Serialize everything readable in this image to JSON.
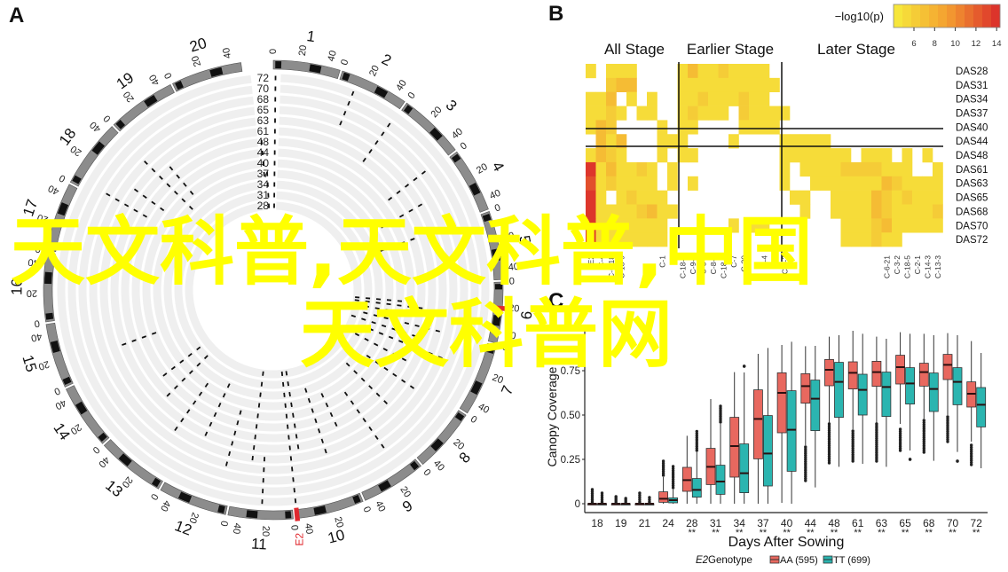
{
  "panels": {
    "a": "A",
    "b": "B",
    "c": "C"
  },
  "watermark": {
    "line1": "天文科普,天文科普,中国",
    "line2": "天文科普网"
  },
  "colors": {
    "track": "#efefef",
    "ring": "#8c8c8c",
    "band": "#111111",
    "marker": "#e0282e",
    "aa": "#e8685f",
    "tt": "#2bb5b0",
    "heat_low": "#f6ec3c",
    "heat_high": "#da2a2a"
  },
  "circos": {
    "chromosomes": [
      "1",
      "2",
      "3",
      "4",
      "5",
      "6",
      "7",
      "8",
      "9",
      "10",
      "11",
      "12",
      "13",
      "14",
      "15",
      "16",
      "17",
      "18",
      "19",
      "20"
    ],
    "tick_labels": [
      "0",
      "20",
      "40"
    ],
    "tracks": [
      "72",
      "70",
      "68",
      "65",
      "63",
      "61",
      "48",
      "44",
      "40",
      "37",
      "34",
      "31",
      "28"
    ],
    "marker_label": "E2"
  },
  "chart_data": [
    {
      "type": "heatmap",
      "legend_title": "−log10(p)",
      "colorbar_ticks": [
        "6",
        "8",
        "10",
        "12",
        "14"
      ],
      "color_range": [
        5,
        14.5
      ],
      "groups": [
        "All Stage",
        "Earlier Stage",
        "Later Stage"
      ],
      "group_sizes": [
        9,
        10,
        16
      ],
      "rows": [
        "DAS28",
        "DAS31",
        "DAS34",
        "DAS37",
        "DAS40",
        "DAS44",
        "DAS48",
        "DAS61",
        "DAS63",
        "DAS65",
        "DAS68",
        "DAS70",
        "DAS72"
      ],
      "columns": [
        "E2",
        "C-4",
        "C-6-18",
        "C-18-9",
        "",
        "",
        "",
        "C-1",
        "",
        "C-18-4",
        "C-9-6",
        "C-3-3",
        "C-8-1",
        "C-18-3",
        "C-7",
        "C-20",
        "",
        "C-4",
        "C-6",
        "C-9-2",
        "",
        "",
        "",
        "",
        "",
        "",
        "",
        "",
        "",
        "C-6-21",
        "C-3-2",
        "C-18-5",
        "C-2-1",
        "C-14-3",
        "C-13-3"
      ],
      "values": [
        [
          6,
          null,
          6,
          6,
          6,
          null,
          null,
          null,
          null,
          6,
          8,
          6,
          6,
          7,
          6,
          6,
          6,
          6,
          null,
          null,
          null,
          null,
          null,
          null,
          null,
          null,
          null,
          null,
          null,
          null,
          null,
          null,
          null,
          null,
          null
        ],
        [
          null,
          null,
          7,
          8,
          8,
          null,
          null,
          null,
          null,
          6,
          6,
          6,
          6,
          6,
          6,
          6,
          6,
          6,
          6,
          null,
          null,
          null,
          null,
          null,
          null,
          null,
          null,
          null,
          null,
          null,
          null,
          null,
          null,
          null,
          null
        ],
        [
          6,
          6,
          8,
          null,
          6,
          null,
          6,
          null,
          null,
          6,
          6,
          7,
          6,
          6,
          6,
          7,
          6,
          6,
          null,
          null,
          null,
          null,
          null,
          null,
          null,
          null,
          null,
          null,
          null,
          null,
          null,
          null,
          null,
          null,
          null
        ],
        [
          6,
          6,
          7,
          6,
          null,
          6,
          6,
          null,
          null,
          6,
          7,
          6,
          6,
          6,
          null,
          7,
          6,
          6,
          6,
          6,
          null,
          null,
          null,
          null,
          null,
          null,
          null,
          null,
          null,
          null,
          null,
          null,
          null,
          null,
          null
        ],
        [
          6,
          8,
          7,
          null,
          null,
          null,
          null,
          6,
          null,
          6,
          6,
          null,
          null,
          null,
          null,
          6,
          6,
          6,
          6,
          null,
          null,
          null,
          null,
          null,
          null,
          null,
          null,
          null,
          null,
          null,
          null,
          null,
          null,
          null,
          null
        ],
        [
          null,
          8,
          6,
          8,
          null,
          null,
          null,
          6,
          6,
          6,
          null,
          null,
          null,
          null,
          6,
          null,
          null,
          null,
          null,
          6,
          6,
          6,
          6,
          6,
          null,
          null,
          null,
          null,
          null,
          null,
          null,
          null,
          null,
          null,
          null
        ],
        [
          6,
          8,
          7,
          6,
          null,
          null,
          null,
          6,
          null,
          6,
          6,
          null,
          null,
          null,
          null,
          null,
          null,
          null,
          null,
          6,
          6,
          6,
          6,
          6,
          6,
          6,
          null,
          6,
          6,
          6,
          null,
          6,
          null,
          6,
          null
        ],
        [
          14,
          6,
          8,
          6,
          6,
          7,
          6,
          null,
          6,
          null,
          null,
          null,
          null,
          null,
          null,
          null,
          null,
          null,
          null,
          6,
          null,
          6,
          6,
          6,
          6,
          7,
          7,
          7,
          7,
          6,
          6,
          6,
          null,
          null,
          6
        ],
        [
          13,
          6,
          7,
          6,
          6,
          6,
          6,
          null,
          6,
          null,
          6,
          null,
          null,
          null,
          null,
          null,
          null,
          null,
          null,
          6,
          null,
          null,
          6,
          6,
          6,
          6,
          6,
          6,
          6,
          8,
          7,
          6,
          6,
          6,
          6
        ],
        [
          14,
          6,
          null,
          6,
          7,
          6,
          6,
          6,
          null,
          null,
          null,
          null,
          null,
          null,
          null,
          null,
          null,
          null,
          null,
          null,
          6,
          6,
          null,
          null,
          6,
          6,
          6,
          6,
          8,
          7,
          6,
          7,
          6,
          6,
          6
        ],
        [
          14,
          6,
          6,
          6,
          6,
          7,
          8,
          6,
          6,
          null,
          null,
          null,
          null,
          null,
          null,
          null,
          null,
          null,
          null,
          null,
          null,
          6,
          null,
          null,
          6,
          6,
          6,
          6,
          8,
          7,
          6,
          6,
          6,
          6,
          7
        ],
        [
          14,
          6,
          6,
          6,
          6,
          6,
          6,
          6,
          null,
          null,
          null,
          null,
          null,
          null,
          6,
          null,
          6,
          6,
          null,
          null,
          null,
          null,
          null,
          null,
          null,
          6,
          6,
          6,
          7,
          8,
          6,
          6,
          6,
          6,
          6
        ],
        [
          14,
          6,
          6,
          6,
          6,
          6,
          6,
          6,
          null,
          null,
          null,
          null,
          null,
          null,
          null,
          null,
          null,
          null,
          null,
          null,
          null,
          null,
          null,
          null,
          null,
          6,
          6,
          6,
          7,
          6,
          6,
          null,
          null,
          null,
          null
        ]
      ]
    },
    {
      "type": "box",
      "xlabel": "Days After Sowing",
      "ylabel": "Canopy Coverage",
      "ylim": [
        0,
        1
      ],
      "yticks": [
        "0",
        "0.25",
        "0.50",
        "0.75"
      ],
      "ytick_values": [
        0,
        0.25,
        0.5,
        0.75
      ],
      "categories": [
        "18",
        "19",
        "21",
        "24",
        "28",
        "31",
        "34",
        "37",
        "40",
        "44",
        "48",
        "61",
        "63",
        "65",
        "68",
        "70",
        "72"
      ],
      "significance": [
        "",
        "",
        "",
        "",
        "**",
        "**",
        "**",
        "**",
        "**",
        "**",
        "**",
        "**",
        "**",
        "**",
        "**",
        "**",
        "**"
      ],
      "legend": {
        "title_italic": "E2",
        "title": " Genotype"
      },
      "series": [
        {
          "name": "AA (595)",
          "stats": [
            {
              "whislo": 0,
              "q1": 0,
              "med": 0,
              "q3": 0,
              "whishi": 0.005,
              "outliers": [
                0.01,
                0.08
              ]
            },
            {
              "whislo": 0,
              "q1": 0,
              "med": 0,
              "q3": 0,
              "whishi": 0.005,
              "outliers": [
                0.01,
                0.04
              ]
            },
            {
              "whislo": 0,
              "q1": 0,
              "med": 0,
              "q3": 0,
              "whishi": 0.005,
              "outliers": [
                0.01,
                0.06
              ]
            },
            {
              "whislo": 0,
              "q1": 0.008,
              "med": 0.028,
              "q3": 0.067,
              "whishi": 0.15,
              "outliers": [
                0.16,
                0.24
              ]
            },
            {
              "whislo": 0,
              "q1": 0.07,
              "med": 0.133,
              "q3": 0.205,
              "whishi": 0.383,
              "outliers": null
            },
            {
              "whislo": 0,
              "q1": 0.108,
              "med": 0.208,
              "q3": 0.312,
              "whishi": 0.59,
              "outliers": null
            },
            {
              "whislo": 0,
              "q1": 0.15,
              "med": 0.325,
              "q3": 0.487,
              "whishi": 0.742,
              "outliers": null
            },
            {
              "whislo": 0,
              "q1": 0.253,
              "med": 0.478,
              "q3": 0.642,
              "whishi": 0.845,
              "outliers": null
            },
            {
              "whislo": 0.005,
              "q1": 0.4,
              "med": 0.625,
              "q3": 0.738,
              "whishi": 0.895,
              "outliers": null
            },
            {
              "whislo": 0.33,
              "q1": 0.567,
              "med": 0.663,
              "q3": 0.733,
              "whishi": 0.888,
              "outliers": [
                0.13,
                0.32
              ]
            },
            {
              "whislo": 0.45,
              "q1": 0.665,
              "med": 0.755,
              "q3": 0.813,
              "whishi": 0.942,
              "outliers": [
                0.23,
                0.45
              ]
            },
            {
              "whislo": 0.42,
              "q1": 0.647,
              "med": 0.738,
              "q3": 0.8,
              "whishi": 0.975,
              "outliers": [
                0.24,
                0.41
              ]
            },
            {
              "whislo": 0.45,
              "q1": 0.662,
              "med": 0.742,
              "q3": 0.803,
              "whishi": 0.942,
              "outliers": [
                0.24,
                0.45
              ]
            },
            {
              "whislo": 0.45,
              "q1": 0.675,
              "med": 0.77,
              "q3": 0.837,
              "whishi": 0.967,
              "outliers": [
                0.3,
                0.42
              ]
            },
            {
              "whislo": 0.48,
              "q1": 0.663,
              "med": 0.742,
              "q3": 0.792,
              "whishi": 0.958,
              "outliers": [
                0.29,
                0.47
              ]
            },
            {
              "whislo": 0.5,
              "q1": 0.7,
              "med": 0.783,
              "q3": 0.842,
              "whishi": 0.962,
              "outliers": [
                0.35,
                0.49
              ]
            },
            {
              "whislo": 0.35,
              "q1": 0.545,
              "med": 0.62,
              "q3": 0.687,
              "whishi": 0.917,
              "outliers": [
                0.22,
                0.33
              ]
            }
          ]
        },
        {
          "name": "TT (699)",
          "stats": [
            {
              "whislo": 0,
              "q1": 0,
              "med": 0,
              "q3": 0,
              "whishi": 0.005,
              "outliers": [
                0.01,
                0.06
              ]
            },
            {
              "whislo": 0,
              "q1": 0,
              "med": 0,
              "q3": 0,
              "whishi": 0.005,
              "outliers": [
                0.01,
                0.03
              ]
            },
            {
              "whislo": 0,
              "q1": 0,
              "med": 0,
              "q3": 0,
              "whishi": 0.005,
              "outliers": [
                0.01,
                0.035
              ]
            },
            {
              "whislo": 0,
              "q1": 0.005,
              "med": 0.02,
              "q3": 0.033,
              "whishi": 0.08,
              "outliers": [
                0.09,
                0.21
              ]
            },
            {
              "whislo": 0,
              "q1": 0.037,
              "med": 0.078,
              "q3": 0.142,
              "whishi": 0.29,
              "outliers": [
                0.3,
                0.408
              ]
            },
            {
              "whislo": 0,
              "q1": 0.053,
              "med": 0.125,
              "q3": 0.217,
              "whishi": 0.45,
              "outliers": [
                0.46,
                0.55
              ]
            },
            {
              "whislo": 0,
              "q1": 0.062,
              "med": 0.172,
              "q3": 0.337,
              "whishi": 0.74,
              "outliers": [
                0.775,
                0.775
              ]
            },
            {
              "whislo": 0,
              "q1": 0.1,
              "med": 0.283,
              "q3": 0.497,
              "whishi": 0.878,
              "outliers": null
            },
            {
              "whislo": 0,
              "q1": 0.183,
              "med": 0.417,
              "q3": 0.637,
              "whishi": 0.913,
              "outliers": null
            },
            {
              "whislo": 0.092,
              "q1": 0.412,
              "med": 0.592,
              "q3": 0.697,
              "whishi": 0.89,
              "outliers": null
            },
            {
              "whislo": 0.208,
              "q1": 0.487,
              "med": 0.687,
              "q3": 0.797,
              "whishi": 0.95,
              "outliers": null
            },
            {
              "whislo": 0.225,
              "q1": 0.5,
              "med": 0.642,
              "q3": 0.73,
              "whishi": 0.958,
              "outliers": null
            },
            {
              "whislo": 0.208,
              "q1": 0.492,
              "med": 0.658,
              "q3": 0.742,
              "whishi": 0.93,
              "outliers": null
            },
            {
              "whislo": 0.3,
              "q1": 0.562,
              "med": 0.678,
              "q3": 0.767,
              "whishi": 0.958,
              "outliers": [
                0.25,
                0.25
              ]
            },
            {
              "whislo": 0.242,
              "q1": 0.52,
              "med": 0.647,
              "q3": 0.737,
              "whishi": 0.95,
              "outliers": null
            },
            {
              "whislo": 0.292,
              "q1": 0.558,
              "med": 0.687,
              "q3": 0.767,
              "whishi": 0.95,
              "outliers": [
                0.24,
                0.24
              ]
            },
            {
              "whislo": 0.2,
              "q1": 0.433,
              "med": 0.558,
              "q3": 0.655,
              "whishi": 0.85,
              "outliers": null
            }
          ]
        }
      ]
    }
  ]
}
